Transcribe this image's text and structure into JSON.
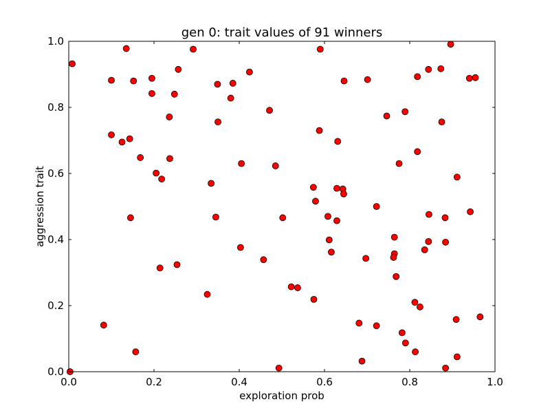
{
  "chart_data": {
    "type": "scatter",
    "title": "gen 0: trait values of 91 winners",
    "xlabel": "exploration prob",
    "ylabel": "aggression trait",
    "xlim": [
      0.0,
      1.0
    ],
    "ylim": [
      0.0,
      1.0
    ],
    "xticks": [
      "0.0",
      "0.2",
      "0.4",
      "0.6",
      "0.8",
      "1.0"
    ],
    "yticks": [
      "0.0",
      "0.2",
      "0.4",
      "0.6",
      "0.8",
      "1.0"
    ],
    "grid": false,
    "legend": false,
    "marker_color": "#ff0000",
    "marker_edge_color": "#000000",
    "points": [
      {
        "x": 0.008,
        "y": 0.932
      },
      {
        "x": 0.1,
        "y": 0.882
      },
      {
        "x": 0.135,
        "y": 0.978
      },
      {
        "x": 0.152,
        "y": 0.88
      },
      {
        "x": 0.195,
        "y": 0.888
      },
      {
        "x": 0.257,
        "y": 0.915
      },
      {
        "x": 0.292,
        "y": 0.976
      },
      {
        "x": 0.195,
        "y": 0.842
      },
      {
        "x": 0.248,
        "y": 0.84
      },
      {
        "x": 0.349,
        "y": 0.87
      },
      {
        "x": 0.385,
        "y": 0.873
      },
      {
        "x": 0.424,
        "y": 0.907
      },
      {
        "x": 0.38,
        "y": 0.828
      },
      {
        "x": 0.59,
        "y": 0.976
      },
      {
        "x": 0.646,
        "y": 0.88
      },
      {
        "x": 0.701,
        "y": 0.884
      },
      {
        "x": 0.818,
        "y": 0.893
      },
      {
        "x": 0.844,
        "y": 0.915
      },
      {
        "x": 0.873,
        "y": 0.917
      },
      {
        "x": 0.896,
        "y": 0.991
      },
      {
        "x": 0.94,
        "y": 0.888
      },
      {
        "x": 0.954,
        "y": 0.89
      },
      {
        "x": 0.236,
        "y": 0.771
      },
      {
        "x": 0.35,
        "y": 0.756
      },
      {
        "x": 0.471,
        "y": 0.791
      },
      {
        "x": 0.746,
        "y": 0.774
      },
      {
        "x": 0.789,
        "y": 0.787
      },
      {
        "x": 0.875,
        "y": 0.756
      },
      {
        "x": 0.1,
        "y": 0.717
      },
      {
        "x": 0.143,
        "y": 0.705
      },
      {
        "x": 0.125,
        "y": 0.695
      },
      {
        "x": 0.588,
        "y": 0.73
      },
      {
        "x": 0.631,
        "y": 0.697
      },
      {
        "x": 0.818,
        "y": 0.666
      },
      {
        "x": 0.168,
        "y": 0.648
      },
      {
        "x": 0.237,
        "y": 0.645
      },
      {
        "x": 0.405,
        "y": 0.63
      },
      {
        "x": 0.485,
        "y": 0.623
      },
      {
        "x": 0.775,
        "y": 0.63
      },
      {
        "x": 0.205,
        "y": 0.601
      },
      {
        "x": 0.218,
        "y": 0.583
      },
      {
        "x": 0.911,
        "y": 0.589
      },
      {
        "x": 0.334,
        "y": 0.57
      },
      {
        "x": 0.574,
        "y": 0.558
      },
      {
        "x": 0.629,
        "y": 0.555
      },
      {
        "x": 0.643,
        "y": 0.553
      },
      {
        "x": 0.645,
        "y": 0.538
      },
      {
        "x": 0.579,
        "y": 0.516
      },
      {
        "x": 0.722,
        "y": 0.5
      },
      {
        "x": 0.942,
        "y": 0.484
      },
      {
        "x": 0.845,
        "y": 0.476
      },
      {
        "x": 0.145,
        "y": 0.466
      },
      {
        "x": 0.345,
        "y": 0.468
      },
      {
        "x": 0.502,
        "y": 0.466
      },
      {
        "x": 0.608,
        "y": 0.47
      },
      {
        "x": 0.629,
        "y": 0.457
      },
      {
        "x": 0.883,
        "y": 0.466
      },
      {
        "x": 0.764,
        "y": 0.407
      },
      {
        "x": 0.611,
        "y": 0.399
      },
      {
        "x": 0.844,
        "y": 0.394
      },
      {
        "x": 0.884,
        "y": 0.392
      },
      {
        "x": 0.403,
        "y": 0.376
      },
      {
        "x": 0.616,
        "y": 0.362
      },
      {
        "x": 0.835,
        "y": 0.369
      },
      {
        "x": 0.764,
        "y": 0.357
      },
      {
        "x": 0.762,
        "y": 0.346
      },
      {
        "x": 0.697,
        "y": 0.343
      },
      {
        "x": 0.457,
        "y": 0.339
      },
      {
        "x": 0.254,
        "y": 0.324
      },
      {
        "x": 0.214,
        "y": 0.314
      },
      {
        "x": 0.768,
        "y": 0.288
      },
      {
        "x": 0.522,
        "y": 0.257
      },
      {
        "x": 0.537,
        "y": 0.254
      },
      {
        "x": 0.325,
        "y": 0.234
      },
      {
        "x": 0.575,
        "y": 0.219
      },
      {
        "x": 0.812,
        "y": 0.21
      },
      {
        "x": 0.824,
        "y": 0.196
      },
      {
        "x": 0.909,
        "y": 0.158
      },
      {
        "x": 0.965,
        "y": 0.166
      },
      {
        "x": 0.082,
        "y": 0.141
      },
      {
        "x": 0.681,
        "y": 0.147
      },
      {
        "x": 0.722,
        "y": 0.139
      },
      {
        "x": 0.782,
        "y": 0.118
      },
      {
        "x": 0.79,
        "y": 0.087
      },
      {
        "x": 0.157,
        "y": 0.06
      },
      {
        "x": 0.813,
        "y": 0.06
      },
      {
        "x": 0.911,
        "y": 0.045
      },
      {
        "x": 0.688,
        "y": 0.032
      },
      {
        "x": 0.493,
        "y": 0.011
      },
      {
        "x": 0.884,
        "y": 0.011
      },
      {
        "x": 0.003,
        "y": 0.0
      }
    ]
  }
}
